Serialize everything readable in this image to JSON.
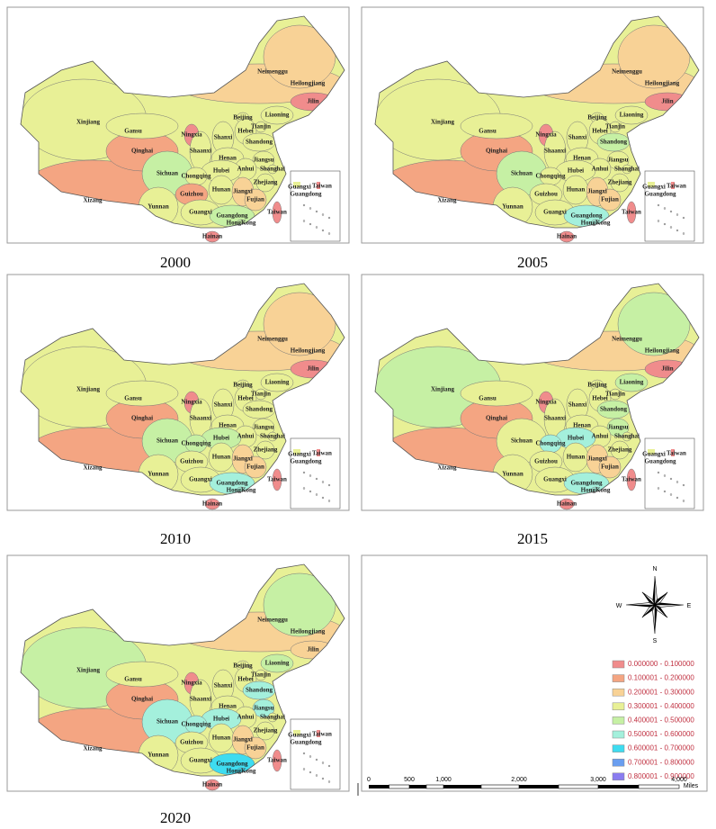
{
  "regions": [
    "Xinjiang",
    "Xizang",
    "Qinghai",
    "Gansu",
    "Neimenggu",
    "Heilongjiang",
    "Jilin",
    "Liaoning",
    "Beijing",
    "Tianjin",
    "Hebei",
    "Shanxi",
    "Ningxia",
    "Shaanxi",
    "Shandong",
    "Henan",
    "Jiangsu",
    "Anhui",
    "Shanghai",
    "Hubei",
    "Sichuan",
    "Chongqing",
    "Zhejiang",
    "Hunan",
    "Jiangxi",
    "Guizhou",
    "Fujian",
    "Yunnan",
    "Guangxi",
    "Guangdong",
    "HongKong",
    "Taiwan",
    "Hainan"
  ],
  "inset_labels": [
    "Guangxi",
    "Taiwan",
    "Guangdong"
  ],
  "maps": [
    {
      "year": "2000",
      "classes": [
        3,
        1,
        1,
        3,
        2,
        2,
        0,
        3,
        3,
        3,
        3,
        3,
        0,
        3,
        3,
        3,
        3,
        3,
        3,
        3,
        4,
        3,
        3,
        3,
        2,
        1,
        2,
        3,
        3,
        4,
        4,
        0,
        0
      ]
    },
    {
      "year": "2005",
      "classes": [
        3,
        1,
        1,
        3,
        2,
        2,
        0,
        3,
        3,
        3,
        3,
        3,
        0,
        3,
        4,
        3,
        3,
        3,
        3,
        3,
        4,
        3,
        3,
        3,
        2,
        3,
        2,
        3,
        3,
        5,
        5,
        0,
        0
      ]
    },
    {
      "year": "2010",
      "classes": [
        3,
        1,
        1,
        3,
        2,
        2,
        0,
        3,
        3,
        3,
        3,
        3,
        0,
        3,
        3,
        3,
        3,
        3,
        3,
        4,
        4,
        4,
        3,
        3,
        2,
        3,
        2,
        3,
        3,
        5,
        5,
        0,
        0
      ]
    },
    {
      "year": "2015",
      "classes": [
        4,
        1,
        1,
        3,
        2,
        4,
        0,
        4,
        3,
        3,
        3,
        3,
        0,
        3,
        4,
        3,
        4,
        3,
        3,
        5,
        3,
        5,
        3,
        3,
        2,
        3,
        2,
        3,
        3,
        5,
        5,
        0,
        0
      ]
    },
    {
      "year": "2020",
      "classes": [
        4,
        1,
        1,
        3,
        2,
        4,
        2,
        4,
        3,
        3,
        3,
        3,
        0,
        3,
        5,
        3,
        5,
        3,
        3,
        5,
        5,
        5,
        3,
        3,
        2,
        3,
        2,
        3,
        3,
        6,
        6,
        0,
        0
      ]
    }
  ],
  "legend": [
    {
      "label": "0.000000 - 0.100000",
      "color": "#f08c8c"
    },
    {
      "label": "0.100001 - 0.200000",
      "color": "#f4a582"
    },
    {
      "label": "0.200001 - 0.300000",
      "color": "#f8d296"
    },
    {
      "label": "0.300001 - 0.400000",
      "color": "#e8f096"
    },
    {
      "label": "0.400001 - 0.500000",
      "color": "#c6f0a4"
    },
    {
      "label": "0.500001 - 0.600000",
      "color": "#a4f0dc"
    },
    {
      "label": "0.600001 - 0.700000",
      "color": "#3edcf0"
    },
    {
      "label": "0.700001 - 0.800000",
      "color": "#6a9ef0"
    },
    {
      "label": "0.800001 - 0.900000",
      "color": "#8a7cf0"
    }
  ],
  "compass": {
    "n": "N",
    "s": "S",
    "e": "E",
    "w": "W"
  },
  "scale_bar": {
    "ticks": [
      "0",
      "500",
      "1,000",
      "2,000",
      "3,000",
      "4,000"
    ],
    "unit": "Miles"
  }
}
